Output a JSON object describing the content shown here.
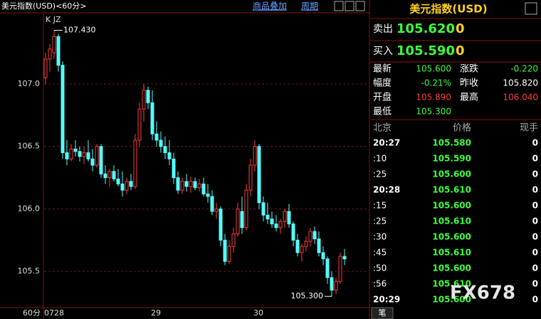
{
  "header": {
    "title": "美元指数(USD)<60分>",
    "overlay": "商品叠加",
    "period": "周期"
  },
  "chart_data": {
    "type": "candlestick",
    "indicator_label": "K JZ",
    "period_label": "60分",
    "categories": [
      "0728",
      null,
      null,
      null,
      null,
      null,
      null,
      null,
      null,
      null,
      null,
      null,
      null,
      null,
      null,
      null,
      null,
      null,
      null,
      null,
      null,
      null,
      null,
      null,
      null,
      "29",
      null,
      null,
      null,
      null,
      null,
      null,
      null,
      null,
      null,
      null,
      null,
      null,
      null,
      null,
      null,
      null,
      null,
      null,
      null,
      null,
      null,
      null,
      null,
      "30",
      null,
      null,
      null,
      null,
      null,
      null,
      null,
      null,
      null,
      null,
      null,
      null,
      null,
      null,
      null,
      null,
      null,
      null,
      null,
      null,
      null
    ],
    "open": [
      107.05,
      107.2,
      107.25,
      107.38,
      107.15,
      106.45,
      106.4,
      106.48,
      106.46,
      106.42,
      106.45,
      106.4,
      106.35,
      106.5,
      106.28,
      106.25,
      106.3,
      106.24,
      106.2,
      106.15,
      106.22,
      106.18,
      106.55,
      106.8,
      106.95,
      106.85,
      106.6,
      106.55,
      106.5,
      106.45,
      106.4,
      106.25,
      106.15,
      106.22,
      106.18,
      106.22,
      106.17,
      106.2,
      106.12,
      106.1,
      105.98,
      106.0,
      105.75,
      105.58,
      105.7,
      105.8,
      105.98,
      105.85,
      106.15,
      106.35,
      106.5,
      106.05,
      105.95,
      105.92,
      105.88,
      105.85,
      105.9,
      105.98,
      105.88,
      105.75,
      105.65,
      105.7,
      105.74,
      105.82,
      105.76,
      105.65,
      105.6,
      105.45,
      105.35,
      105.42,
      105.62
    ],
    "high": [
      107.25,
      107.32,
      107.43,
      107.4,
      107.18,
      106.55,
      106.52,
      106.55,
      106.5,
      106.5,
      106.55,
      106.48,
      106.52,
      106.52,
      106.35,
      106.32,
      106.35,
      106.32,
      106.3,
      106.25,
      106.28,
      106.6,
      106.85,
      107.0,
      106.98,
      106.95,
      106.7,
      106.62,
      106.58,
      106.55,
      106.45,
      106.3,
      106.25,
      106.28,
      106.26,
      106.25,
      106.24,
      106.25,
      106.2,
      106.15,
      106.05,
      106.02,
      105.8,
      105.75,
      105.85,
      106.05,
      106.1,
      106.2,
      106.4,
      106.55,
      106.52,
      106.1,
      106.05,
      105.98,
      105.95,
      105.92,
      106.0,
      106.04,
      105.9,
      105.8,
      105.72,
      105.78,
      105.85,
      105.86,
      105.82,
      105.7,
      105.62,
      105.5,
      105.45,
      105.65,
      105.68
    ],
    "low": [
      107.0,
      107.1,
      107.2,
      107.1,
      106.4,
      106.35,
      106.38,
      106.42,
      106.38,
      106.36,
      106.38,
      106.3,
      106.33,
      106.25,
      106.2,
      106.18,
      106.22,
      106.18,
      106.1,
      106.12,
      106.15,
      106.16,
      106.5,
      106.7,
      106.8,
      106.55,
      106.5,
      106.45,
      106.4,
      106.35,
      106.2,
      106.12,
      106.12,
      106.14,
      106.13,
      106.15,
      106.14,
      106.1,
      106.05,
      105.95,
      105.92,
      105.7,
      105.55,
      105.56,
      105.65,
      105.78,
      105.8,
      105.83,
      106.1,
      106.3,
      106.0,
      105.9,
      105.88,
      105.85,
      105.82,
      105.8,
      105.85,
      105.85,
      105.7,
      105.62,
      105.58,
      105.66,
      105.7,
      105.72,
      105.62,
      105.55,
      105.4,
      105.3,
      105.32,
      105.4,
      105.55
    ],
    "close": [
      107.2,
      107.28,
      107.38,
      107.15,
      106.45,
      106.4,
      106.48,
      106.46,
      106.42,
      106.45,
      106.4,
      106.35,
      106.5,
      106.28,
      106.25,
      106.3,
      106.24,
      106.2,
      106.15,
      106.22,
      106.18,
      106.55,
      106.8,
      106.95,
      106.85,
      106.6,
      106.55,
      106.5,
      106.45,
      106.4,
      106.25,
      106.15,
      106.22,
      106.18,
      106.22,
      106.17,
      106.2,
      106.12,
      106.1,
      105.98,
      106.0,
      105.75,
      105.58,
      105.7,
      105.8,
      106.0,
      105.85,
      106.15,
      106.35,
      106.5,
      106.05,
      105.95,
      105.92,
      105.88,
      105.85,
      105.9,
      105.98,
      105.88,
      105.75,
      105.65,
      105.7,
      105.74,
      105.82,
      105.76,
      105.65,
      105.6,
      105.45,
      105.35,
      105.42,
      105.62,
      105.6
    ],
    "up_color": "#ff3b3b",
    "down_color": "#54fcfc",
    "ylim": [
      105.21,
      107.57
    ],
    "yticks": [
      105.5,
      {
        "value": 106,
        "label": "106.0"
      },
      106.5,
      {
        "value": 107,
        "label": "107.0"
      }
    ],
    "grid": true,
    "max_label": "107.430",
    "min_label": "105.300"
  },
  "quote": {
    "name": "美元指数(USD)",
    "sell_label": "卖出",
    "sell": "105.620",
    "sell_vol": "0",
    "buy_label": "买入",
    "buy": "105.590",
    "buy_vol": "0",
    "stats": [
      [
        "最新",
        "105.600",
        "涨跌",
        "-0.220"
      ],
      [
        "幅度",
        "-0.21%",
        "昨收",
        "105.820"
      ],
      [
        "开盘",
        "105.890",
        "最高",
        "106.040"
      ],
      [
        "最低",
        "105.300"
      ]
    ]
  },
  "trades": {
    "columns": [
      "北京",
      "价格",
      "现手"
    ],
    "rows": [
      [
        "20:27",
        "105.580",
        "0"
      ],
      [
        ":10",
        "105.590",
        "0"
      ],
      [
        ":25",
        "105.600",
        "0"
      ],
      [
        "20:28",
        "105.610",
        "0"
      ],
      [
        ":15",
        "105.600",
        "0"
      ],
      [
        ":25",
        "105.610",
        "0"
      ],
      [
        ":30",
        "105.600",
        "0"
      ],
      [
        ":45",
        "105.610",
        "0"
      ],
      [
        ":50",
        "105.600",
        "0"
      ],
      [
        ":56",
        "105.610",
        "0"
      ],
      [
        "20:29",
        "105.600",
        "0"
      ]
    ]
  },
  "watermark": "FX678",
  "tab": "笔"
}
